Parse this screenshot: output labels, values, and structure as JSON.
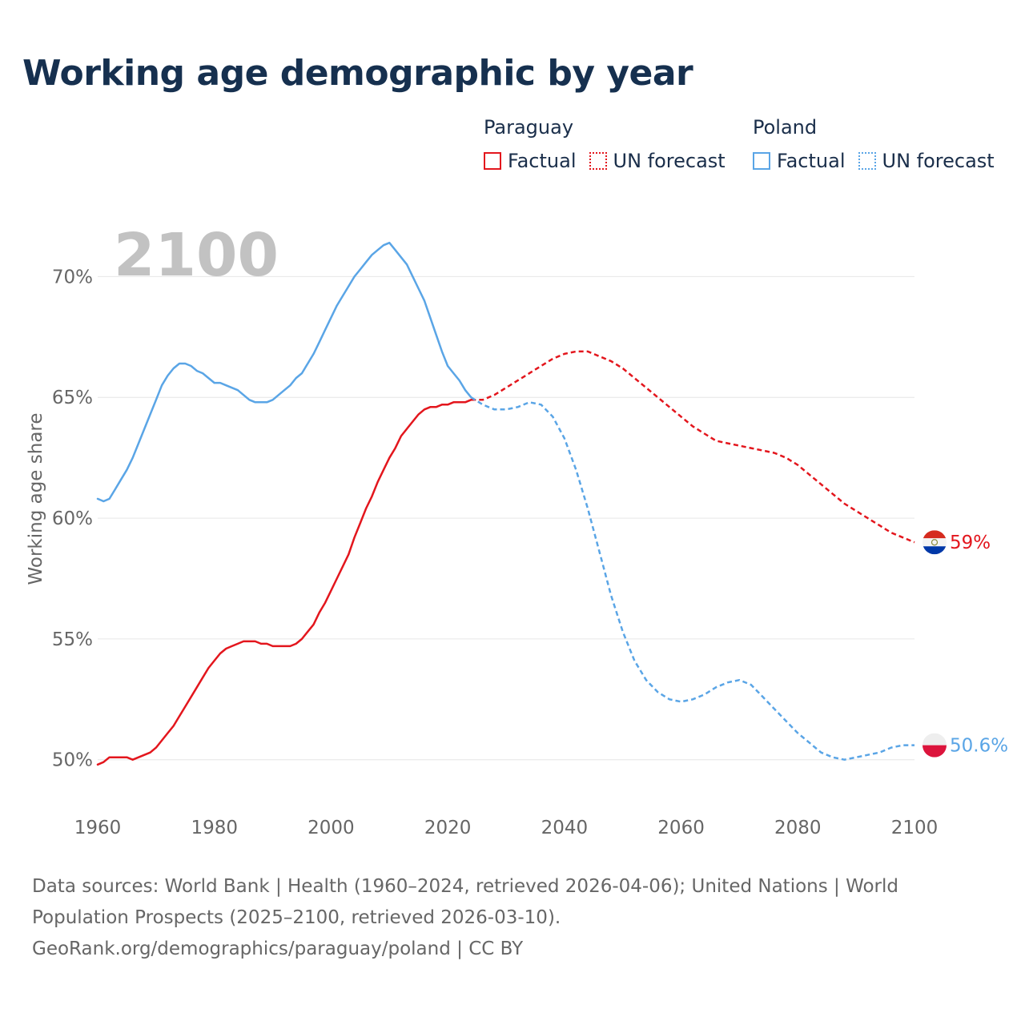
{
  "title": "Working age demographic by year",
  "legend": {
    "groups": [
      {
        "country": "Paraguay",
        "factual_label": "Factual",
        "forecast_label": "UN forecast",
        "color": "#e3161d"
      },
      {
        "country": "Poland",
        "factual_label": "Factual",
        "forecast_label": "UN forecast",
        "color": "#5aa5e6"
      }
    ]
  },
  "year_label": "2100",
  "footer": {
    "line1": "Data sources: World Bank | Health (1960–2024, retrieved 2026-04-06); United Nations | World",
    "line2": "Population Prospects (2025–2100, retrieved 2026-03-10).",
    "line3": "GeoRank.org/demographics/paraguay/poland | CC BY"
  },
  "chart_data": {
    "type": "line",
    "title": "Working age demographic by year",
    "xlabel": "",
    "ylabel": "Working age share",
    "xlim": [
      1960,
      2100
    ],
    "ylim": [
      48.3,
      72.5
    ],
    "x_ticks": [
      "1960",
      "1980",
      "2000",
      "2020",
      "2040",
      "2060",
      "2080",
      "2100"
    ],
    "y_ticks": [
      {
        "value": 50,
        "label": "50%"
      },
      {
        "value": 55,
        "label": "55%"
      },
      {
        "value": 60,
        "label": "60%"
      },
      {
        "value": 65,
        "label": "65%"
      },
      {
        "value": 70,
        "label": "70%"
      }
    ],
    "grid": true,
    "factual_range": [
      1960,
      2024
    ],
    "forecast_range": [
      2024,
      2100
    ],
    "series": [
      {
        "name": "Paraguay",
        "color": "#e3161d",
        "end_label": "59%",
        "x": [
          1960,
          1961,
          1962,
          1963,
          1964,
          1965,
          1966,
          1967,
          1968,
          1969,
          1970,
          1971,
          1972,
          1973,
          1974,
          1975,
          1976,
          1977,
          1978,
          1979,
          1980,
          1981,
          1982,
          1983,
          1984,
          1985,
          1986,
          1987,
          1988,
          1989,
          1990,
          1991,
          1992,
          1993,
          1994,
          1995,
          1996,
          1997,
          1998,
          1999,
          2000,
          2001,
          2002,
          2003,
          2004,
          2005,
          2006,
          2007,
          2008,
          2009,
          2010,
          2011,
          2012,
          2013,
          2014,
          2015,
          2016,
          2017,
          2018,
          2019,
          2020,
          2021,
          2022,
          2023,
          2024,
          2026,
          2028,
          2030,
          2032,
          2034,
          2036,
          2038,
          2040,
          2042,
          2044,
          2046,
          2048,
          2050,
          2052,
          2054,
          2056,
          2058,
          2060,
          2062,
          2064,
          2066,
          2068,
          2070,
          2072,
          2074,
          2076,
          2078,
          2080,
          2082,
          2084,
          2086,
          2088,
          2090,
          2092,
          2094,
          2096,
          2098,
          2100
        ],
        "values": [
          49.8,
          49.9,
          50.1,
          50.1,
          50.1,
          50.1,
          50.0,
          50.1,
          50.2,
          50.3,
          50.5,
          50.8,
          51.1,
          51.4,
          51.8,
          52.2,
          52.6,
          53.0,
          53.4,
          53.8,
          54.1,
          54.4,
          54.6,
          54.7,
          54.8,
          54.9,
          54.9,
          54.9,
          54.8,
          54.8,
          54.7,
          54.7,
          54.7,
          54.7,
          54.8,
          55.0,
          55.3,
          55.6,
          56.1,
          56.5,
          57.0,
          57.5,
          58.0,
          58.5,
          59.2,
          59.8,
          60.4,
          60.9,
          61.5,
          62.0,
          62.5,
          62.9,
          63.4,
          63.7,
          64.0,
          64.3,
          64.5,
          64.6,
          64.6,
          64.7,
          64.7,
          64.8,
          64.8,
          64.8,
          64.9,
          64.9,
          65.1,
          65.4,
          65.7,
          66.0,
          66.3,
          66.6,
          66.8,
          66.9,
          66.9,
          66.7,
          66.5,
          66.2,
          65.8,
          65.4,
          65.0,
          64.6,
          64.2,
          63.8,
          63.5,
          63.2,
          63.1,
          63.0,
          62.9,
          62.8,
          62.7,
          62.5,
          62.2,
          61.8,
          61.4,
          61.0,
          60.6,
          60.3,
          60.0,
          59.7,
          59.4,
          59.2,
          59.0
        ]
      },
      {
        "name": "Poland",
        "color": "#5aa5e6",
        "end_label": "50.6%",
        "x": [
          1960,
          1961,
          1962,
          1963,
          1964,
          1965,
          1966,
          1967,
          1968,
          1969,
          1970,
          1971,
          1972,
          1973,
          1974,
          1975,
          1976,
          1977,
          1978,
          1979,
          1980,
          1981,
          1982,
          1983,
          1984,
          1985,
          1986,
          1987,
          1988,
          1989,
          1990,
          1991,
          1992,
          1993,
          1994,
          1995,
          1996,
          1997,
          1998,
          1999,
          2000,
          2001,
          2002,
          2003,
          2004,
          2005,
          2006,
          2007,
          2008,
          2009,
          2010,
          2011,
          2012,
          2013,
          2014,
          2015,
          2016,
          2017,
          2018,
          2019,
          2020,
          2021,
          2022,
          2023,
          2024,
          2026,
          2028,
          2030,
          2032,
          2034,
          2036,
          2038,
          2040,
          2042,
          2044,
          2046,
          2048,
          2050,
          2052,
          2054,
          2056,
          2058,
          2060,
          2062,
          2064,
          2066,
          2068,
          2070,
          2072,
          2074,
          2076,
          2078,
          2080,
          2082,
          2084,
          2086,
          2088,
          2090,
          2092,
          2094,
          2096,
          2098,
          2100
        ],
        "values": [
          60.8,
          60.7,
          60.8,
          61.2,
          61.6,
          62.0,
          62.5,
          63.1,
          63.7,
          64.3,
          64.9,
          65.5,
          65.9,
          66.2,
          66.4,
          66.4,
          66.3,
          66.1,
          66.0,
          65.8,
          65.6,
          65.6,
          65.5,
          65.4,
          65.3,
          65.1,
          64.9,
          64.8,
          64.8,
          64.8,
          64.9,
          65.1,
          65.3,
          65.5,
          65.8,
          66.0,
          66.4,
          66.8,
          67.3,
          67.8,
          68.3,
          68.8,
          69.2,
          69.6,
          70.0,
          70.3,
          70.6,
          70.9,
          71.1,
          71.3,
          71.4,
          71.1,
          70.8,
          70.5,
          70.0,
          69.5,
          69.0,
          68.3,
          67.6,
          66.9,
          66.3,
          66.0,
          65.7,
          65.3,
          65.0,
          64.7,
          64.5,
          64.5,
          64.6,
          64.8,
          64.7,
          64.2,
          63.3,
          62.0,
          60.4,
          58.6,
          56.8,
          55.3,
          54.1,
          53.3,
          52.8,
          52.5,
          52.4,
          52.5,
          52.7,
          53.0,
          53.2,
          53.3,
          53.1,
          52.6,
          52.1,
          51.6,
          51.1,
          50.7,
          50.3,
          50.1,
          50.0,
          50.1,
          50.2,
          50.3,
          50.5,
          50.6,
          50.6
        ]
      }
    ]
  }
}
